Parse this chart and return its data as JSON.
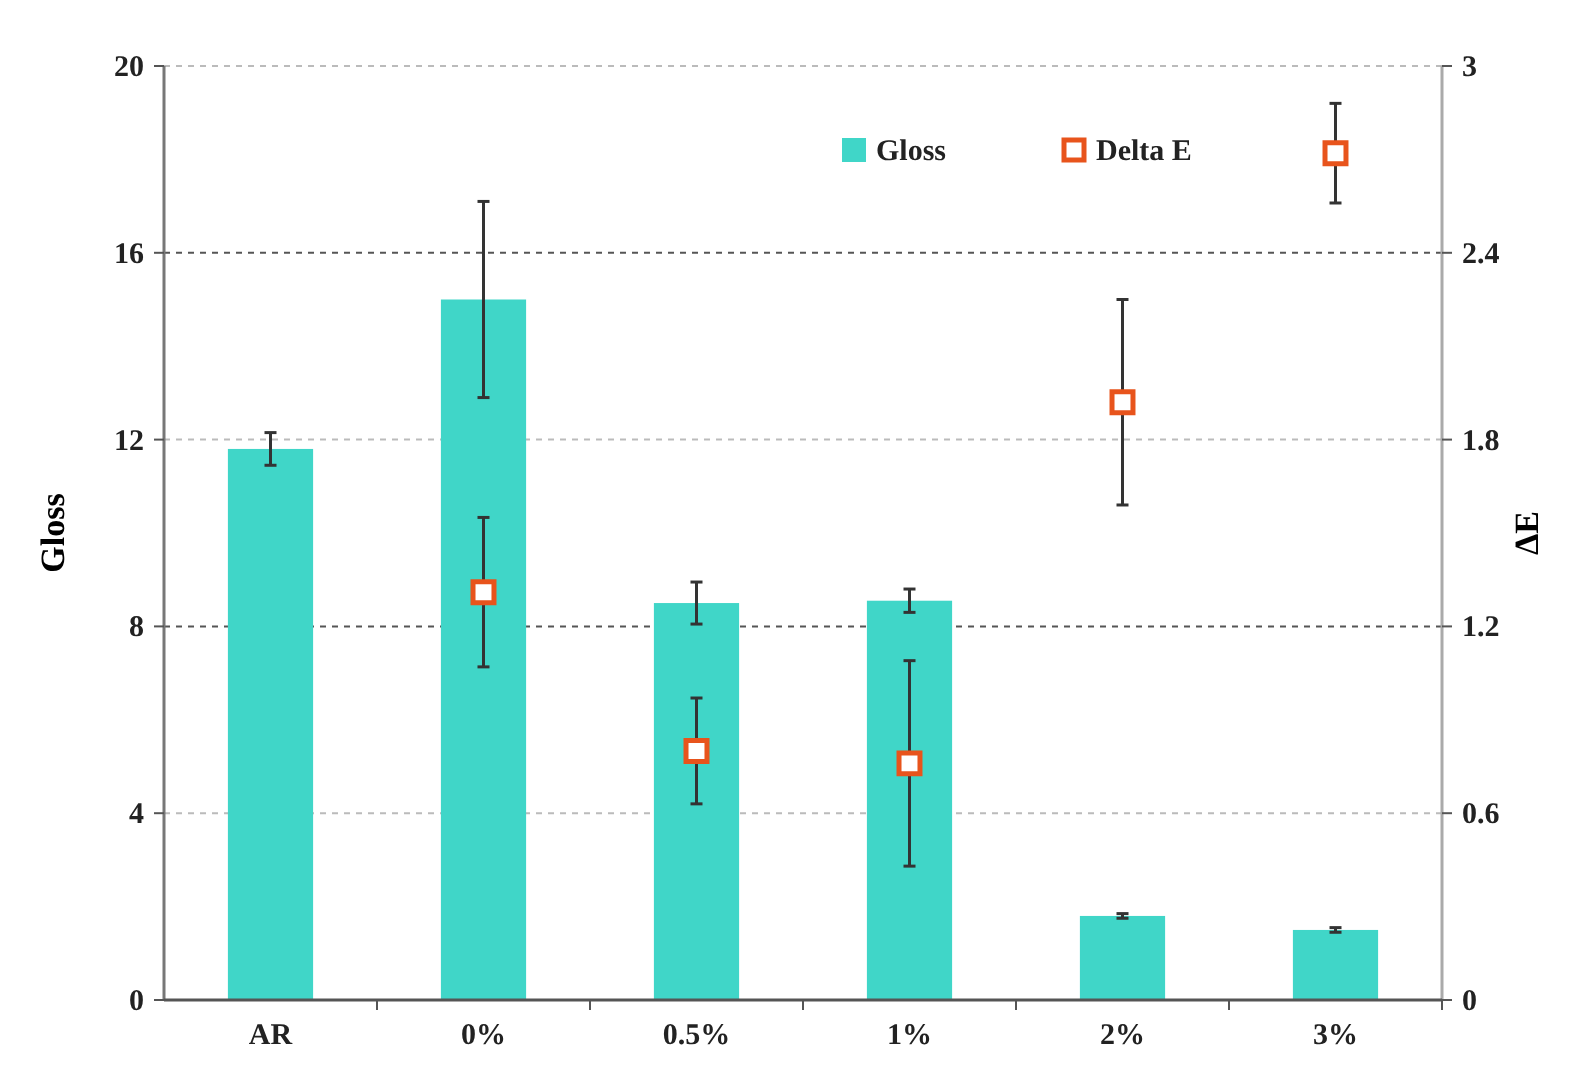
{
  "chart_data": {
    "type": "bar",
    "categories": [
      "AR",
      "0%",
      "0.5%",
      "1%",
      "2%",
      "3%"
    ],
    "series": [
      {
        "name": "Gloss",
        "color": "#40d6c8",
        "values": [
          11.8,
          15,
          8.5,
          8.55,
          1.8,
          1.5
        ],
        "errors": [
          0.35,
          2.1,
          0.45,
          0.25,
          0.05,
          0.05
        ]
      },
      {
        "name": "Delta E",
        "type": "scatter",
        "axis": "y2",
        "color": "#e8541c",
        "marker": "square",
        "values": [
          null,
          1.31,
          0.8,
          0.76,
          1.92,
          2.72
        ],
        "errors": [
          null,
          0.24,
          0.17,
          0.33,
          0.33,
          0.16
        ]
      }
    ],
    "ylabel": "Gloss",
    "y2label": "ΔE",
    "ylim": [
      0,
      20
    ],
    "yticks": [
      0,
      4,
      8,
      12,
      16,
      20
    ],
    "y2lim": [
      0,
      3
    ],
    "y2ticks": [
      0,
      0.6,
      1.2,
      1.8,
      2.4,
      3
    ],
    "grid": "y",
    "legend": "top right"
  }
}
